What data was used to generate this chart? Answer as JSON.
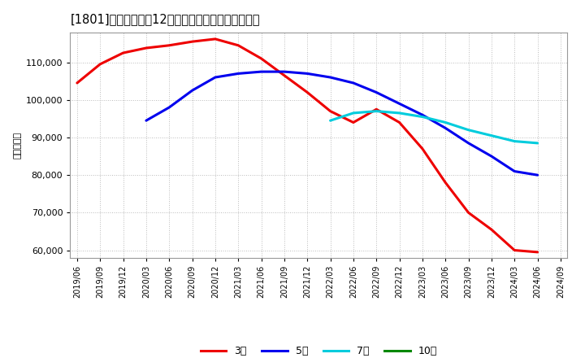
{
  "title": "[1801]　当期純利益12か月移動合計の平均値の推移",
  "ylabel": "（百万円）",
  "background_color": "#ffffff",
  "plot_background_color": "#ffffff",
  "grid_color": "#bbbbbb",
  "ylim": [
    58000,
    118000
  ],
  "yticks": [
    60000,
    70000,
    80000,
    90000,
    100000,
    110000
  ],
  "x_labels": [
    "2019/06",
    "2019/09",
    "2019/12",
    "2020/03",
    "2020/06",
    "2020/09",
    "2020/12",
    "2021/03",
    "2021/06",
    "2021/09",
    "2021/12",
    "2022/03",
    "2022/06",
    "2022/09",
    "2022/12",
    "2023/03",
    "2023/06",
    "2023/09",
    "2023/12",
    "2024/03",
    "2024/06",
    "2024/09"
  ],
  "series": {
    "3年": {
      "color": "#ee0000",
      "data_x": [
        0,
        1,
        2,
        3,
        4,
        5,
        6,
        7,
        8,
        9,
        10,
        11,
        12,
        13,
        14,
        15,
        16,
        17,
        18,
        19,
        20
      ],
      "data_y": [
        104500,
        109500,
        112500,
        113800,
        114500,
        115500,
        116200,
        114500,
        111000,
        106500,
        102000,
        97000,
        94000,
        97500,
        94000,
        87000,
        78000,
        70000,
        65500,
        60000,
        59500
      ]
    },
    "5年": {
      "color": "#0000ee",
      "data_x": [
        3,
        4,
        5,
        6,
        7,
        8,
        9,
        10,
        11,
        12,
        13,
        14,
        15,
        16,
        17,
        18,
        19,
        20
      ],
      "data_y": [
        94500,
        98000,
        102500,
        106000,
        107000,
        107500,
        107500,
        107000,
        106000,
        104500,
        102000,
        99000,
        96000,
        92500,
        88500,
        85000,
        81000,
        80000
      ]
    },
    "7年": {
      "color": "#00ccdd",
      "data_x": [
        11,
        12,
        13,
        14,
        15,
        16,
        17,
        18,
        19,
        20
      ],
      "data_y": [
        94500,
        96500,
        97000,
        96500,
        95500,
        94000,
        92000,
        90500,
        89000,
        88500
      ]
    },
    "10年": {
      "color": "#008800",
      "data_x": [],
      "data_y": []
    }
  },
  "legend_labels": [
    "3年",
    "5年",
    "7年",
    "10年"
  ],
  "legend_colors": [
    "#ee0000",
    "#0000ee",
    "#00ccdd",
    "#008800"
  ]
}
